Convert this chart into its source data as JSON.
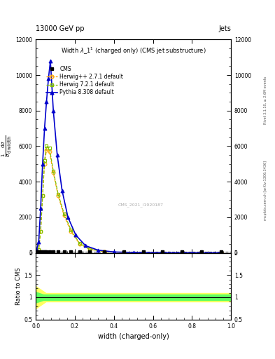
{
  "title_top": "13000 GeV pp",
  "title_right": "Jets",
  "plot_title": "Width λ_1¹ (charged only) (CMS jet substructure)",
  "xlabel": "width (charged-only)",
  "ylabel_ratio": "Ratio to CMS",
  "right_label_top": "Rivet 3.1.10, ≥ 2.6M events",
  "right_label_bot": "mcplots.cern.ch [arXiv:1306.3436]",
  "watermark": "CMS_2021_I1920187",
  "cms_x": [
    0.005,
    0.015,
    0.025,
    0.035,
    0.045,
    0.055,
    0.07,
    0.09,
    0.115,
    0.145,
    0.18,
    0.225,
    0.275,
    0.35,
    0.45,
    0.55,
    0.65,
    0.75,
    0.85,
    0.95
  ],
  "cms_y": [
    0,
    0,
    0,
    0,
    0,
    0,
    0,
    0,
    0,
    0,
    0,
    0,
    0,
    0,
    0,
    0,
    0,
    0,
    0,
    0
  ],
  "herwig_pp_x": [
    0.005,
    0.015,
    0.025,
    0.035,
    0.045,
    0.055,
    0.07,
    0.09,
    0.115,
    0.145,
    0.18,
    0.225,
    0.275,
    0.35,
    0.45,
    0.55,
    0.65,
    0.75,
    0.85,
    0.95
  ],
  "herwig_pp_y": [
    50,
    200,
    1200,
    3200,
    5000,
    5800,
    5700,
    4500,
    3200,
    2100,
    1200,
    500,
    200,
    70,
    20,
    5,
    2,
    1,
    0.5,
    0.2
  ],
  "herwig72_x": [
    0.005,
    0.015,
    0.025,
    0.035,
    0.045,
    0.055,
    0.07,
    0.09,
    0.115,
    0.145,
    0.18,
    0.225,
    0.275,
    0.35,
    0.45,
    0.55,
    0.65,
    0.75,
    0.85,
    0.95
  ],
  "herwig72_y": [
    50,
    200,
    1200,
    3200,
    5200,
    6000,
    5900,
    4600,
    3300,
    2200,
    1300,
    520,
    210,
    75,
    22,
    6,
    2,
    1,
    0.5,
    0.2
  ],
  "pythia_x": [
    0.005,
    0.015,
    0.025,
    0.035,
    0.045,
    0.055,
    0.065,
    0.075,
    0.09,
    0.11,
    0.135,
    0.165,
    0.205,
    0.255,
    0.32,
    0.4,
    0.5,
    0.65,
    0.8,
    0.95
  ],
  "pythia_y": [
    200,
    600,
    2500,
    5000,
    7000,
    8500,
    9800,
    10800,
    8000,
    5500,
    3500,
    2000,
    1000,
    400,
    150,
    50,
    15,
    5,
    1,
    0.3
  ],
  "ylim_main": [
    0,
    12000
  ],
  "ylim_ratio": [
    0.5,
    2.0
  ],
  "xlim": [
    0,
    1.0
  ],
  "yticks_main": [
    0,
    2000,
    4000,
    6000,
    8000,
    10000,
    12000
  ],
  "ytick_labels_main": [
    "0",
    "2000",
    "4000",
    "6000",
    "8000",
    "10000",
    "12000"
  ],
  "yticks_ratio": [
    0.5,
    1.0,
    1.5,
    2.0
  ],
  "color_herwig_pp": "#FFA500",
  "color_herwig72": "#80C000",
  "color_pythia": "#0000CC",
  "color_cms": "#000000",
  "ratio_band_yellow": "#FFFF60",
  "ratio_band_green": "#60FF60"
}
